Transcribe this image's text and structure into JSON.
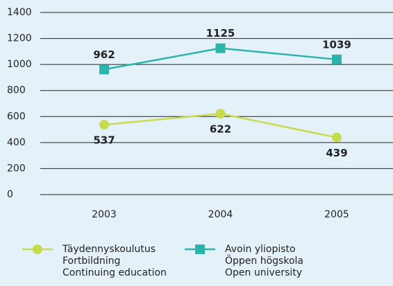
{
  "chart_data": {
    "type": "line",
    "categories": [
      "2003",
      "2004",
      "2005"
    ],
    "series": [
      {
        "name": "Täydennyskoulutus\nFortbildning\nContinuing education",
        "color": "#c6dc4e",
        "marker": "circle",
        "values": [
          537,
          622,
          439
        ]
      },
      {
        "name": "Avoin yliopisto\nÖppen högskola\nOpen university",
        "color": "#2bb4ac",
        "marker": "square",
        "values": [
          962,
          1125,
          1039
        ]
      }
    ],
    "ylim": [
      0,
      1400
    ],
    "yticks": [
      0,
      200,
      400,
      600,
      800,
      1000,
      1200,
      1400
    ],
    "grid": true
  }
}
